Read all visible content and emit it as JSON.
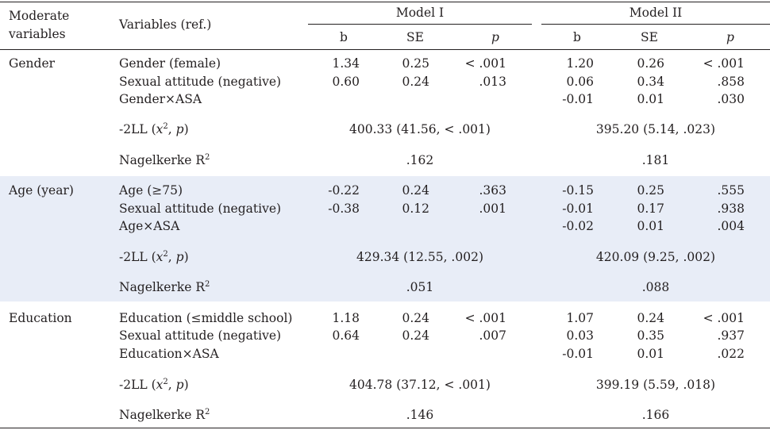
{
  "header": {
    "moderate": "Moderate",
    "variables": "variables",
    "variables_ref": "Variables (ref.)",
    "model1": "Model I",
    "model2": "Model II",
    "b": "b",
    "se": "SE",
    "p": "p"
  },
  "groups": [
    {
      "name": "Gender",
      "rows": [
        {
          "label": "Gender (female)",
          "m1": [
            "1.34",
            "0.25",
            "< .001"
          ],
          "m2": [
            "1.20",
            "0.26",
            "< .001"
          ]
        },
        {
          "label": "Sexual attitude (negative)",
          "m1": [
            "0.60",
            "0.24",
            ".013"
          ],
          "m2": [
            "0.06",
            "0.34",
            ".858"
          ]
        },
        {
          "label": "Gender×ASA",
          "m1": [
            "",
            "",
            ""
          ],
          "m2": [
            "-0.01",
            "0.01",
            ".030"
          ]
        }
      ],
      "ll": {
        "m1": "400.33 (41.56,  < .001)",
        "m2": "395.20 (5.14,  .023)"
      },
      "r2": {
        "m1": ".162",
        "m2": ".181"
      }
    },
    {
      "name": "Age (year)",
      "rows": [
        {
          "label": "Age (≥75)",
          "m1": [
            "-0.22",
            "0.24",
            ".363"
          ],
          "m2": [
            "-0.15",
            "0.25",
            ".555"
          ]
        },
        {
          "label": "Sexual attitude (negative)",
          "m1": [
            "-0.38",
            "0.12",
            ".001"
          ],
          "m2": [
            "-0.01",
            "0.17",
            ".938"
          ]
        },
        {
          "label": "Age×ASA",
          "m1": [
            "",
            "",
            ""
          ],
          "m2": [
            "-0.02",
            "0.01",
            ".004"
          ]
        }
      ],
      "ll": {
        "m1": "429.34 (12.55,  .002)",
        "m2": "420.09 (9.25,  .002)"
      },
      "r2": {
        "m1": ".051",
        "m2": ".088"
      }
    },
    {
      "name": "Education",
      "rows": [
        {
          "label": "Education (≤middle school)",
          "m1": [
            "1.18",
            "0.24",
            "< .001"
          ],
          "m2": [
            "1.07",
            "0.24",
            "< .001"
          ]
        },
        {
          "label": "Sexual attitude (negative)",
          "m1": [
            "0.64",
            "0.24",
            ".007"
          ],
          "m2": [
            "0.03",
            "0.35",
            ".937"
          ]
        },
        {
          "label": "Education×ASA",
          "m1": [
            "",
            "",
            ""
          ],
          "m2": [
            "-0.01",
            "0.01",
            ".022"
          ]
        }
      ],
      "ll": {
        "m1": "404.78 (37.12,  < .001)",
        "m2": "399.19 (5.59,  .018)"
      },
      "r2": {
        "m1": ".146",
        "m2": ".166"
      }
    }
  ],
  "stats": {
    "ll_prefix": "-2LL (",
    "ll_x": "x",
    "ll_exp": "2",
    "ll_sep": ", ",
    "ll_p": "p",
    "ll_close": ")",
    "r2_label": "Nagelkerke R",
    "r2_exp": "2"
  }
}
